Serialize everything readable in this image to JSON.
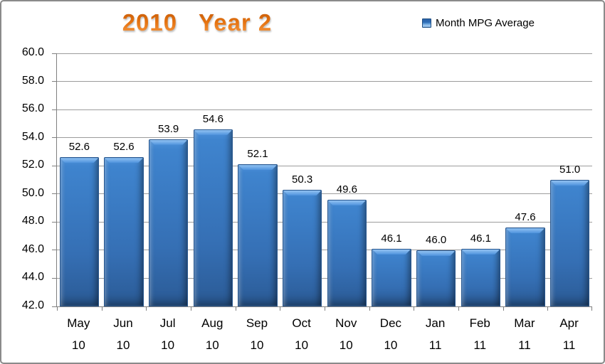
{
  "frame": {
    "background": "#FFFFFF",
    "border_color": "#8A8A8A"
  },
  "chart_data": {
    "type": "bar",
    "title": "2010   Year 2",
    "title_color": "#E4710E",
    "legend": {
      "label": "Month MPG Average",
      "position": "top-right",
      "marker_color": "#3D7CC6"
    },
    "categories": [
      [
        "May",
        "10"
      ],
      [
        "Jun",
        "10"
      ],
      [
        "Jul",
        "10"
      ],
      [
        "Aug",
        "10"
      ],
      [
        "Sep",
        "10"
      ],
      [
        "Oct",
        "10"
      ],
      [
        "Nov",
        "10"
      ],
      [
        "Dec",
        "10"
      ],
      [
        "Jan",
        "11"
      ],
      [
        "Feb",
        "11"
      ],
      [
        "Mar",
        "11"
      ],
      [
        "Apr",
        "11"
      ]
    ],
    "series": [
      {
        "name": "Month MPG Average",
        "values": [
          52.6,
          52.6,
          53.9,
          54.6,
          52.1,
          50.3,
          49.6,
          46.1,
          46.0,
          46.1,
          47.6,
          51.0
        ]
      }
    ],
    "value_labels": [
      "52.6",
      "52.6",
      "53.9",
      "54.6",
      "52.1",
      "50.3",
      "49.6",
      "46.1",
      "46.0",
      "46.1",
      "47.6",
      "51.0"
    ],
    "y_ticks": [
      "60.0",
      "58.0",
      "56.0",
      "54.0",
      "52.0",
      "50.0",
      "48.0",
      "46.0",
      "44.0",
      "42.0"
    ],
    "ylim": [
      42,
      60
    ],
    "y_step": 2,
    "grid": "horizontal-only",
    "bar_color": "#3B7BC4",
    "bar_edge_color": "#27568E",
    "gridline_color": "#9C9C9C",
    "axis_color": "#7F7F7F",
    "text_color": "#000000",
    "xlabel": "",
    "ylabel": ""
  }
}
